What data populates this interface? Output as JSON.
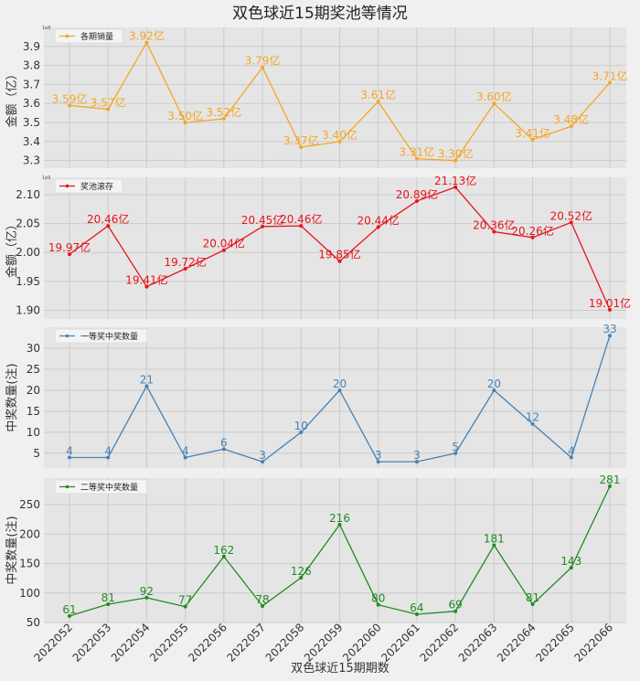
{
  "chart_data": {
    "type": "line",
    "title": "双色球近15期奖池等情况",
    "xlabel": "双色球近15期期数",
    "categories": [
      "2022052",
      "2022053",
      "2022054",
      "2022055",
      "2022056",
      "2022057",
      "2022058",
      "2022059",
      "2022060",
      "2022061",
      "2022062",
      "2022063",
      "2022064",
      "2022065",
      "2022066"
    ],
    "panels": [
      {
        "series_name": "各期销量",
        "color": "#f5a623",
        "ylabel": "金额（亿）",
        "sci_label": "1e8",
        "ylim": [
          3.26,
          4.0
        ],
        "yticks": [
          3.3,
          3.4,
          3.5,
          3.6,
          3.7,
          3.8,
          3.9
        ],
        "values": [
          3.59,
          3.57,
          3.92,
          3.5,
          3.52,
          3.79,
          3.37,
          3.4,
          3.61,
          3.31,
          3.3,
          3.6,
          3.41,
          3.48,
          3.71
        ],
        "labels": [
          "3.59亿",
          "3.57亿",
          "3.92亿",
          "3.50亿",
          "3.52亿",
          "3.79亿",
          "3.37亿",
          "3.40亿",
          "3.61亿",
          "3.31亿",
          "3.30亿",
          "3.60亿",
          "3.41亿",
          "3.48亿",
          "3.71亿"
        ]
      },
      {
        "series_name": "奖池滚存",
        "color": "#e8131b",
        "ylabel": "金额（亿）",
        "sci_label": "1e9",
        "ylim": [
          1.885,
          2.13
        ],
        "yticks": [
          1.9,
          1.95,
          2.0,
          2.05,
          2.1
        ],
        "values": [
          1.997,
          2.046,
          1.941,
          1.972,
          2.004,
          2.045,
          2.046,
          1.985,
          2.044,
          2.089,
          2.113,
          2.036,
          2.026,
          2.052,
          1.901
        ],
        "labels": [
          "19.97亿",
          "20.46亿",
          "19.41亿",
          "19.72亿",
          "20.04亿",
          "20.45亿",
          "20.46亿",
          "19.85亿",
          "20.44亿",
          "20.89亿",
          "21.13亿",
          "20.36亿",
          "20.26亿",
          "20.52亿",
          "19.01亿"
        ]
      },
      {
        "series_name": "一等奖中奖数量",
        "color": "#4682b4",
        "ylabel": "中奖数量(注)",
        "sci_label": "",
        "ylim": [
          1.5,
          35
        ],
        "yticks": [
          5,
          10,
          15,
          20,
          25,
          30
        ],
        "values": [
          4,
          4,
          21,
          4,
          6,
          3,
          10,
          20,
          3,
          3,
          5,
          20,
          12,
          4,
          33
        ],
        "labels": [
          "4",
          "4",
          "21",
          "4",
          "6",
          "3",
          "10",
          "20",
          "3",
          "3",
          "5",
          "20",
          "12",
          "4",
          "33"
        ]
      },
      {
        "series_name": "二等奖中奖数量",
        "color": "#228b22",
        "ylabel": "中奖数量(注)",
        "sci_label": "",
        "ylim": [
          50,
          295
        ],
        "yticks": [
          50,
          100,
          150,
          200,
          250
        ],
        "values": [
          61,
          81,
          92,
          77,
          162,
          78,
          126,
          216,
          80,
          64,
          69,
          181,
          81,
          143,
          281
        ],
        "labels": [
          "61",
          "81",
          "92",
          "77",
          "162",
          "78",
          "126",
          "216",
          "80",
          "64",
          "69",
          "181",
          "81",
          "143",
          "281"
        ]
      }
    ]
  }
}
